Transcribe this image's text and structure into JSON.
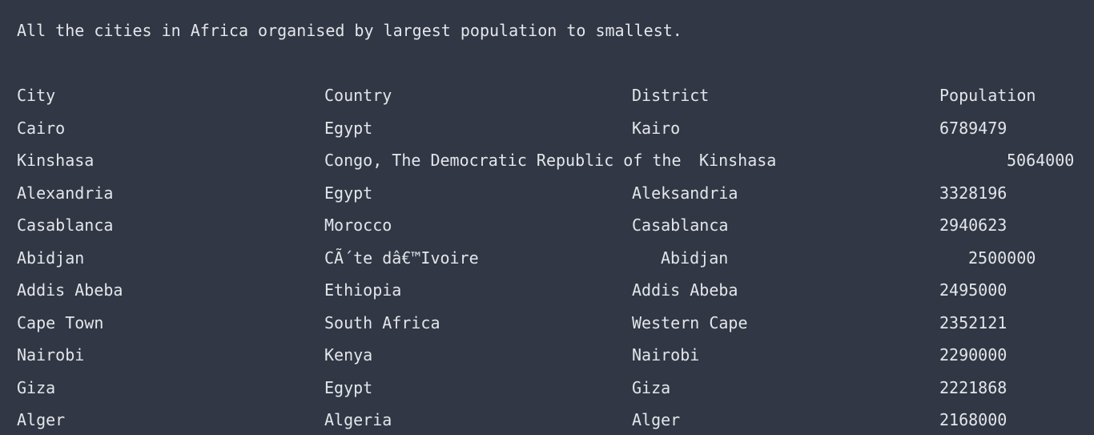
{
  "intro_text": "All the cities in Africa organised by largest population to smallest.",
  "table": {
    "headers": {
      "city": "City",
      "country": "Country",
      "district": "District",
      "population": "Population"
    },
    "rows": [
      {
        "city": "Cairo",
        "country": "Egypt",
        "district": "Kairo",
        "population": "6789479"
      },
      {
        "city": "Kinshasa",
        "country": "Congo, The Democratic Republic of the",
        "district": "Kinshasa",
        "population": "5064000"
      },
      {
        "city": "Alexandria",
        "country": "Egypt",
        "district": "Aleksandria",
        "population": "3328196"
      },
      {
        "city": "Casablanca",
        "country": "Morocco",
        "district": "Casablanca",
        "population": "2940623"
      },
      {
        "city": "Abidjan",
        "country": "CÃ´te dâ€™Ivoire",
        "district": "Abidjan",
        "population": "2500000"
      },
      {
        "city": "Addis Abeba",
        "country": "Ethiopia",
        "district": "Addis Abeba",
        "population": "2495000"
      },
      {
        "city": "Cape Town",
        "country": "South Africa",
        "district": "Western Cape",
        "population": "2352121"
      },
      {
        "city": "Nairobi",
        "country": "Kenya",
        "district": "Nairobi",
        "population": "2290000"
      },
      {
        "city": "Giza",
        "country": "Egypt",
        "district": "Giza",
        "population": "2221868"
      },
      {
        "city": "Alger",
        "country": "Algeria",
        "district": "Alger",
        "population": "2168000"
      }
    ]
  }
}
